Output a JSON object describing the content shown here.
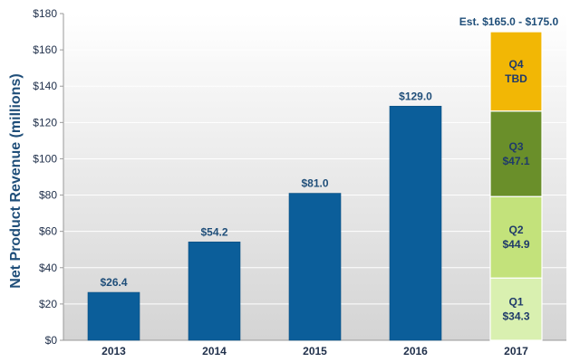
{
  "chart_data": {
    "type": "bar",
    "title": "",
    "xlabel": "",
    "ylabel": "Net Product Revenue (millions)",
    "ylim": [
      0,
      180
    ],
    "yticks": [
      "$0",
      "$20",
      "$40",
      "$60",
      "$80",
      "$100",
      "$120",
      "$140",
      "$160",
      "$180"
    ],
    "grid": true,
    "categories": [
      "2013",
      "2014",
      "2015",
      "2016",
      "2017"
    ],
    "annual": {
      "values": [
        26.4,
        54.2,
        81.0,
        129.0
      ],
      "labels": [
        "$26.4",
        "$54.2",
        "$81.0",
        "$129.0"
      ],
      "color": "#0b5e9a"
    },
    "stacked_2017": [
      {
        "name": "Q1",
        "value": 34.3,
        "label": "$34.3",
        "color": "#d9f0b0"
      },
      {
        "name": "Q2",
        "value": 44.9,
        "label": "$44.9",
        "color": "#c3e27b"
      },
      {
        "name": "Q3",
        "value": 47.1,
        "label": "$47.1",
        "color": "#6a8f2a"
      },
      {
        "name": "Q4",
        "value": 43.7,
        "label": "TBD",
        "color": "#f2b705"
      }
    ],
    "annotation": "Est. $165.0 - $175.0",
    "colors": {
      "plot_bg_top": "#ffffff",
      "plot_bg_bottom": "#d4d4d4",
      "grid": "#ffffff",
      "axis": "#9a9a9a"
    }
  }
}
